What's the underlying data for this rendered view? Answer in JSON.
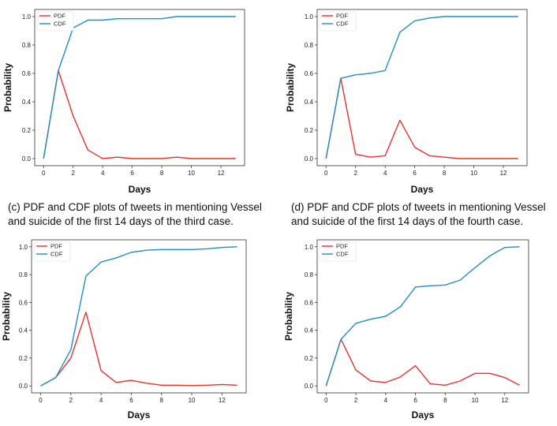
{
  "captions": {
    "c": "(c) PDF and CDF plots of tweets in mentioning Vessel and suicide of the first 14 days of the third case.",
    "d": "(d) PDF and CDF plots of tweets in mentioning Vessel and suicide of the first 14 days of the fourth case."
  },
  "colors": {
    "pdf": "#e8322c",
    "cdf": "#1f8fc4"
  },
  "chart_data": [
    {
      "type": "line",
      "xlabel": "Days",
      "ylabel": "Probability",
      "xticks": [
        "0",
        "2",
        "4",
        "6",
        "8",
        "10",
        "12"
      ],
      "yticks": [
        "0.0",
        "0.2",
        "0.4",
        "0.6",
        "0.8",
        "1.0"
      ],
      "xlim": [
        -0.6,
        13.6
      ],
      "ylim": [
        -0.05,
        1.05
      ],
      "legend_position": "upper-left",
      "x": [
        0,
        1,
        2,
        3,
        4,
        5,
        6,
        7,
        8,
        9,
        10,
        11,
        12,
        13
      ],
      "series": [
        {
          "name": "PDF",
          "color": "#e8322c",
          "values": [
            0,
            0.62,
            0.3,
            0.06,
            0.0,
            0.01,
            0.0,
            0.0,
            0.0,
            0.01,
            0.0,
            0.0,
            0.0,
            0.0
          ]
        },
        {
          "name": "CDF",
          "color": "#1f8fc4",
          "values": [
            0,
            0.62,
            0.92,
            0.975,
            0.975,
            0.985,
            0.985,
            0.985,
            0.985,
            1.0,
            1.0,
            1.0,
            1.0,
            1.0
          ]
        }
      ]
    },
    {
      "type": "line",
      "xlabel": "Days",
      "ylabel": "Probability",
      "xticks": [
        "0",
        "2",
        "4",
        "6",
        "8",
        "10",
        "12"
      ],
      "yticks": [
        "0.0",
        "0.2",
        "0.4",
        "0.6",
        "0.8",
        "1.0"
      ],
      "xlim": [
        -0.6,
        13.6
      ],
      "ylim": [
        -0.05,
        1.05
      ],
      "legend_position": "upper-left",
      "x": [
        0,
        1,
        2,
        3,
        4,
        5,
        6,
        7,
        8,
        9,
        10,
        11,
        12,
        13
      ],
      "series": [
        {
          "name": "PDF",
          "color": "#e8322c",
          "values": [
            0,
            0.565,
            0.03,
            0.01,
            0.02,
            0.27,
            0.08,
            0.02,
            0.01,
            0.0,
            0.0,
            0.0,
            0.0,
            0.0
          ]
        },
        {
          "name": "CDF",
          "color": "#1f8fc4",
          "values": [
            0,
            0.565,
            0.59,
            0.6,
            0.62,
            0.89,
            0.97,
            0.99,
            1.0,
            1.0,
            1.0,
            1.0,
            1.0,
            1.0
          ]
        }
      ]
    },
    {
      "type": "line",
      "xlabel": "Days",
      "ylabel": "Probability",
      "xticks": [
        "0",
        "2",
        "4",
        "6",
        "8",
        "10",
        "12"
      ],
      "yticks": [
        "0.0",
        "0.2",
        "0.4",
        "0.6",
        "0.8",
        "1.0"
      ],
      "xlim": [
        -0.6,
        13.6
      ],
      "ylim": [
        -0.05,
        1.05
      ],
      "legend_position": "upper-left",
      "x": [
        0,
        1,
        2,
        3,
        4,
        5,
        6,
        7,
        8,
        9,
        10,
        11,
        12,
        13
      ],
      "series": [
        {
          "name": "PDF",
          "color": "#e8322c",
          "values": [
            0,
            0.06,
            0.2,
            0.53,
            0.11,
            0.025,
            0.04,
            0.02,
            0.005,
            0.005,
            0.003,
            0.005,
            0.01,
            0.005
          ]
        },
        {
          "name": "CDF",
          "color": "#1f8fc4",
          "values": [
            0,
            0.06,
            0.26,
            0.79,
            0.89,
            0.92,
            0.96,
            0.975,
            0.98,
            0.98,
            0.98,
            0.985,
            0.995,
            1.0
          ]
        }
      ]
    },
    {
      "type": "line",
      "xlabel": "Days",
      "ylabel": "Probability",
      "xticks": [
        "0",
        "2",
        "4",
        "6",
        "8",
        "10",
        "12"
      ],
      "yticks": [
        "0.0",
        "0.2",
        "0.4",
        "0.6",
        "0.8",
        "1.0"
      ],
      "xlim": [
        -0.6,
        13.6
      ],
      "ylim": [
        -0.05,
        1.05
      ],
      "legend_position": "upper-left",
      "x": [
        0,
        1,
        2,
        3,
        4,
        5,
        6,
        7,
        8,
        9,
        10,
        11,
        12,
        13
      ],
      "series": [
        {
          "name": "PDF",
          "color": "#e8322c",
          "values": [
            0,
            0.335,
            0.115,
            0.035,
            0.025,
            0.065,
            0.145,
            0.015,
            0.005,
            0.035,
            0.09,
            0.09,
            0.06,
            0.005
          ]
        },
        {
          "name": "CDF",
          "color": "#1f8fc4",
          "values": [
            0,
            0.335,
            0.45,
            0.48,
            0.5,
            0.57,
            0.71,
            0.72,
            0.725,
            0.76,
            0.85,
            0.935,
            0.995,
            1.0
          ]
        }
      ]
    }
  ]
}
